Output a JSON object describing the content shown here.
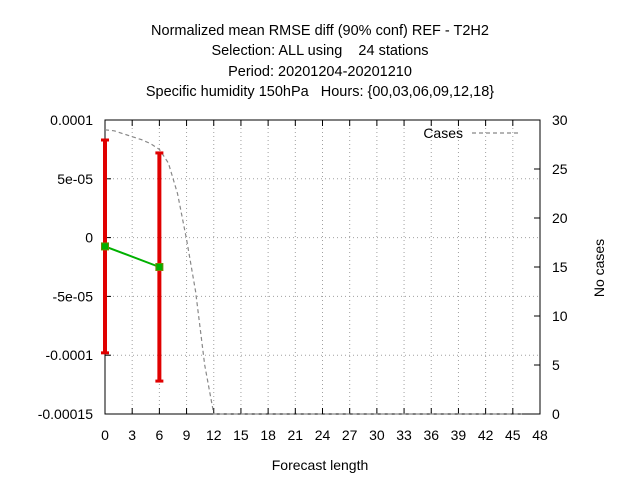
{
  "chart_data": {
    "type": "line",
    "title_lines": [
      "Normalized mean RMSE diff (90% conf) REF - T2H2",
      "Selection: ALL using    24 stations",
      "Period: 20201204-20201210",
      "Specific humidity 150hPa   Hours: {00,03,06,09,12,18}"
    ],
    "xlabel": "Forecast length",
    "ylabel": "",
    "y2label": "No cases",
    "xlim": [
      0,
      48
    ],
    "ylim": [
      -0.00015,
      0.0001
    ],
    "y2lim": [
      0,
      30
    ],
    "x_ticks": [
      0,
      3,
      6,
      9,
      12,
      15,
      18,
      21,
      24,
      27,
      30,
      33,
      36,
      39,
      42,
      45,
      48
    ],
    "y_ticks": [
      {
        "value": 0.0001,
        "label": "0.0001"
      },
      {
        "value": 5e-05,
        "label": "5e-05"
      },
      {
        "value": 0,
        "label": "0"
      },
      {
        "value": -5e-05,
        "label": "-5e-05"
      },
      {
        "value": -0.0001,
        "label": "-0.0001"
      },
      {
        "value": -0.00015,
        "label": "-0.00015"
      }
    ],
    "y2_ticks": [
      0,
      5,
      10,
      15,
      20,
      25,
      30
    ],
    "grid": true,
    "legend_position": "top-right",
    "series": [
      {
        "kind": "line-with-errorbars",
        "color": "#00b000",
        "errorbar_color": "#e00000",
        "points": [
          {
            "x": 0,
            "y": -7.5e-06,
            "low": -9.8e-05,
            "high": 8.3e-05
          },
          {
            "x": 6,
            "y": -2.5e-05,
            "low": -0.000122,
            "high": 7.2e-05
          }
        ]
      },
      {
        "name": "Cases",
        "kind": "dashed-line",
        "axis": "y2",
        "color": "#888888",
        "x": [
          0,
          1,
          2,
          3,
          4,
          5,
          6,
          7,
          8,
          9,
          10,
          11,
          12,
          13,
          15,
          18,
          21,
          24,
          27,
          30,
          33,
          36,
          39,
          42,
          45,
          46
        ],
        "y": [
          29,
          28.9,
          28.6,
          28.3,
          28,
          27.6,
          27,
          25.6,
          22.5,
          17.8,
          12.5,
          5,
          0,
          0,
          0,
          0,
          0,
          0,
          0,
          0,
          0,
          0,
          0,
          0,
          0,
          0
        ]
      }
    ]
  }
}
